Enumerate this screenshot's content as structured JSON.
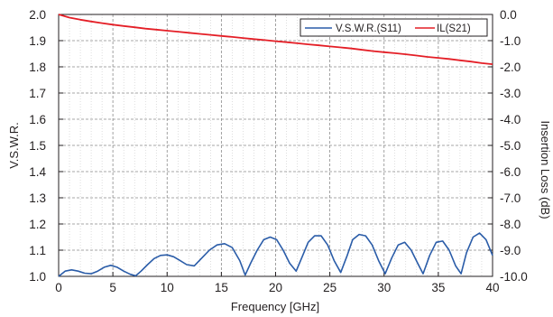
{
  "chart_data": {
    "type": "line",
    "xlabel": "Frequency [GHz]",
    "ylabel_left": "V.S.W.R.",
    "ylabel_right": "Insertion Loss (dB)",
    "xlim": [
      0,
      40
    ],
    "ylim_left": [
      1.0,
      2.0
    ],
    "ylim_right": [
      -10.0,
      0.0
    ],
    "x_ticks": [
      "0",
      "5",
      "10",
      "15",
      "20",
      "25",
      "30",
      "35",
      "40"
    ],
    "y_left_ticks": [
      "1.0",
      "1.1",
      "1.2",
      "1.3",
      "1.4",
      "1.5",
      "1.6",
      "1.7",
      "1.8",
      "1.9",
      "2.0"
    ],
    "y_right_ticks": [
      "-10.0",
      "-9.0",
      "-8.0",
      "-7.0",
      "-6.0",
      "-5.0",
      "-4.0",
      "-3.0",
      "-2.0",
      "-1.0",
      "0.0"
    ],
    "grid": true,
    "legend_position": "top-right",
    "series": [
      {
        "name": "V.S.W.R.(S11)",
        "axis": "left",
        "color": "#2a5ca8",
        "x": [
          0,
          0.6,
          1.2,
          1.8,
          2.4,
          3.0,
          3.6,
          4.2,
          4.8,
          5.4,
          6.0,
          6.6,
          7.1,
          7.6,
          8.2,
          8.8,
          9.4,
          10.0,
          10.6,
          11.2,
          11.8,
          12.5,
          13.2,
          13.9,
          14.6,
          15.3,
          16.0,
          16.7,
          17.2,
          17.7,
          18.3,
          18.9,
          19.5,
          20.1,
          20.7,
          21.3,
          21.9,
          22.5,
          23.0,
          23.6,
          24.2,
          24.8,
          25.4,
          26.0,
          26.6,
          27.1,
          27.7,
          28.3,
          28.9,
          29.5,
          30.1,
          30.7,
          31.3,
          31.9,
          32.5,
          33.1,
          33.6,
          34.2,
          34.8,
          35.4,
          36.0,
          36.6,
          37.1,
          37.6,
          38.2,
          38.8,
          39.4,
          40.0
        ],
        "y": [
          1.0,
          1.02,
          1.025,
          1.02,
          1.012,
          1.01,
          1.02,
          1.035,
          1.042,
          1.035,
          1.02,
          1.008,
          1.002,
          1.02,
          1.045,
          1.068,
          1.08,
          1.082,
          1.075,
          1.06,
          1.045,
          1.04,
          1.07,
          1.1,
          1.12,
          1.125,
          1.11,
          1.06,
          1.005,
          1.05,
          1.1,
          1.14,
          1.15,
          1.14,
          1.1,
          1.05,
          1.02,
          1.08,
          1.13,
          1.155,
          1.155,
          1.12,
          1.06,
          1.015,
          1.08,
          1.14,
          1.16,
          1.155,
          1.12,
          1.06,
          1.01,
          1.07,
          1.12,
          1.13,
          1.1,
          1.05,
          1.01,
          1.08,
          1.13,
          1.135,
          1.1,
          1.04,
          1.01,
          1.09,
          1.15,
          1.165,
          1.14,
          1.08
        ]
      },
      {
        "name": "IL(S21)",
        "axis": "right",
        "color": "#e41e26",
        "x": [
          0,
          1,
          2,
          3,
          4,
          5,
          6,
          7,
          8,
          9,
          10,
          11,
          12,
          13,
          14,
          15,
          16,
          17,
          18,
          19,
          20,
          21,
          22,
          23,
          24,
          25,
          26,
          27,
          28,
          29,
          30,
          31,
          32,
          33,
          34,
          35,
          36,
          37,
          38,
          39,
          40
        ],
        "y": [
          0.0,
          -0.12,
          -0.2,
          -0.27,
          -0.33,
          -0.39,
          -0.44,
          -0.49,
          -0.54,
          -0.58,
          -0.62,
          -0.66,
          -0.7,
          -0.74,
          -0.78,
          -0.82,
          -0.86,
          -0.9,
          -0.94,
          -0.98,
          -1.02,
          -1.06,
          -1.1,
          -1.14,
          -1.18,
          -1.22,
          -1.26,
          -1.3,
          -1.35,
          -1.4,
          -1.44,
          -1.48,
          -1.52,
          -1.57,
          -1.62,
          -1.66,
          -1.7,
          -1.75,
          -1.8,
          -1.86,
          -1.9
        ]
      }
    ]
  }
}
